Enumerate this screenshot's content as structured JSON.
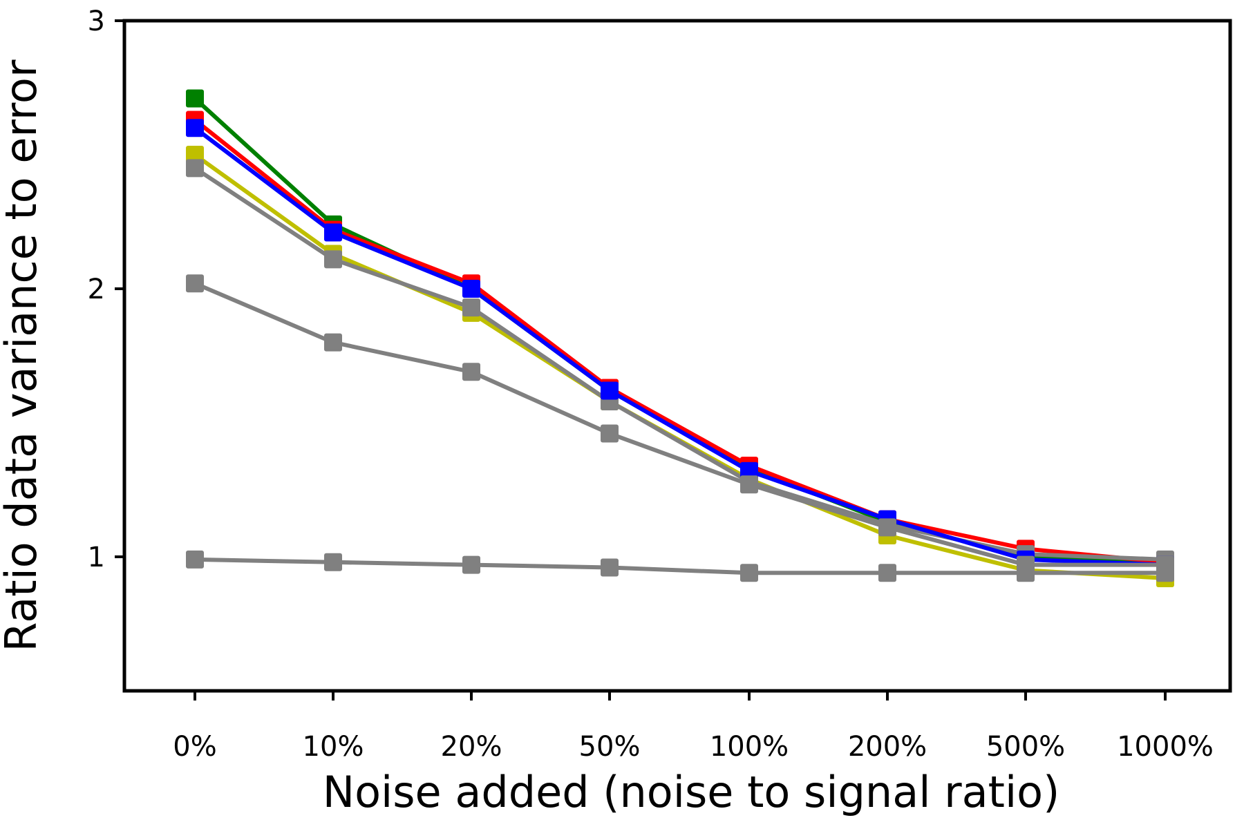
{
  "chart_data": {
    "type": "line",
    "title": "",
    "xlabel": "Noise added (noise to signal ratio)",
    "ylabel": "Ratio data variance to error",
    "categories": [
      "0%",
      "10%",
      "20%",
      "50%",
      "100%",
      "200%",
      "500%",
      "1000%"
    ],
    "y_ticks": [
      1,
      2,
      3
    ],
    "y_tick_labels": [
      "1",
      "2",
      "3"
    ],
    "ylim": [
      0.5,
      3
    ],
    "grid": false,
    "legend": "none",
    "marker": "square",
    "series": [
      {
        "color": "#008000",
        "values": [
          2.71,
          2.24,
          2.0,
          1.62,
          1.33,
          1.13,
          1.0,
          0.98
        ]
      },
      {
        "color": "#ff0000",
        "values": [
          2.63,
          2.22,
          2.02,
          1.63,
          1.34,
          1.14,
          1.03,
          0.98
        ]
      },
      {
        "color": "#bfbf00",
        "values": [
          2.5,
          2.13,
          1.91,
          1.58,
          1.29,
          1.08,
          0.95,
          0.92
        ]
      },
      {
        "color": "#808080",
        "values": [
          2.45,
          2.11,
          1.93,
          1.58,
          1.28,
          1.12,
          1.01,
          0.99
        ]
      },
      {
        "color": "#0000ff",
        "values": [
          2.6,
          2.21,
          2.0,
          1.62,
          1.32,
          1.14,
          0.99,
          0.97
        ]
      },
      {
        "color": "#808080",
        "values": [
          2.02,
          1.8,
          1.69,
          1.46,
          1.27,
          1.11,
          0.97,
          0.97
        ]
      },
      {
        "color": "#808080",
        "values": [
          0.99,
          0.98,
          0.97,
          0.96,
          0.94,
          0.94,
          0.94,
          0.94
        ]
      }
    ]
  }
}
